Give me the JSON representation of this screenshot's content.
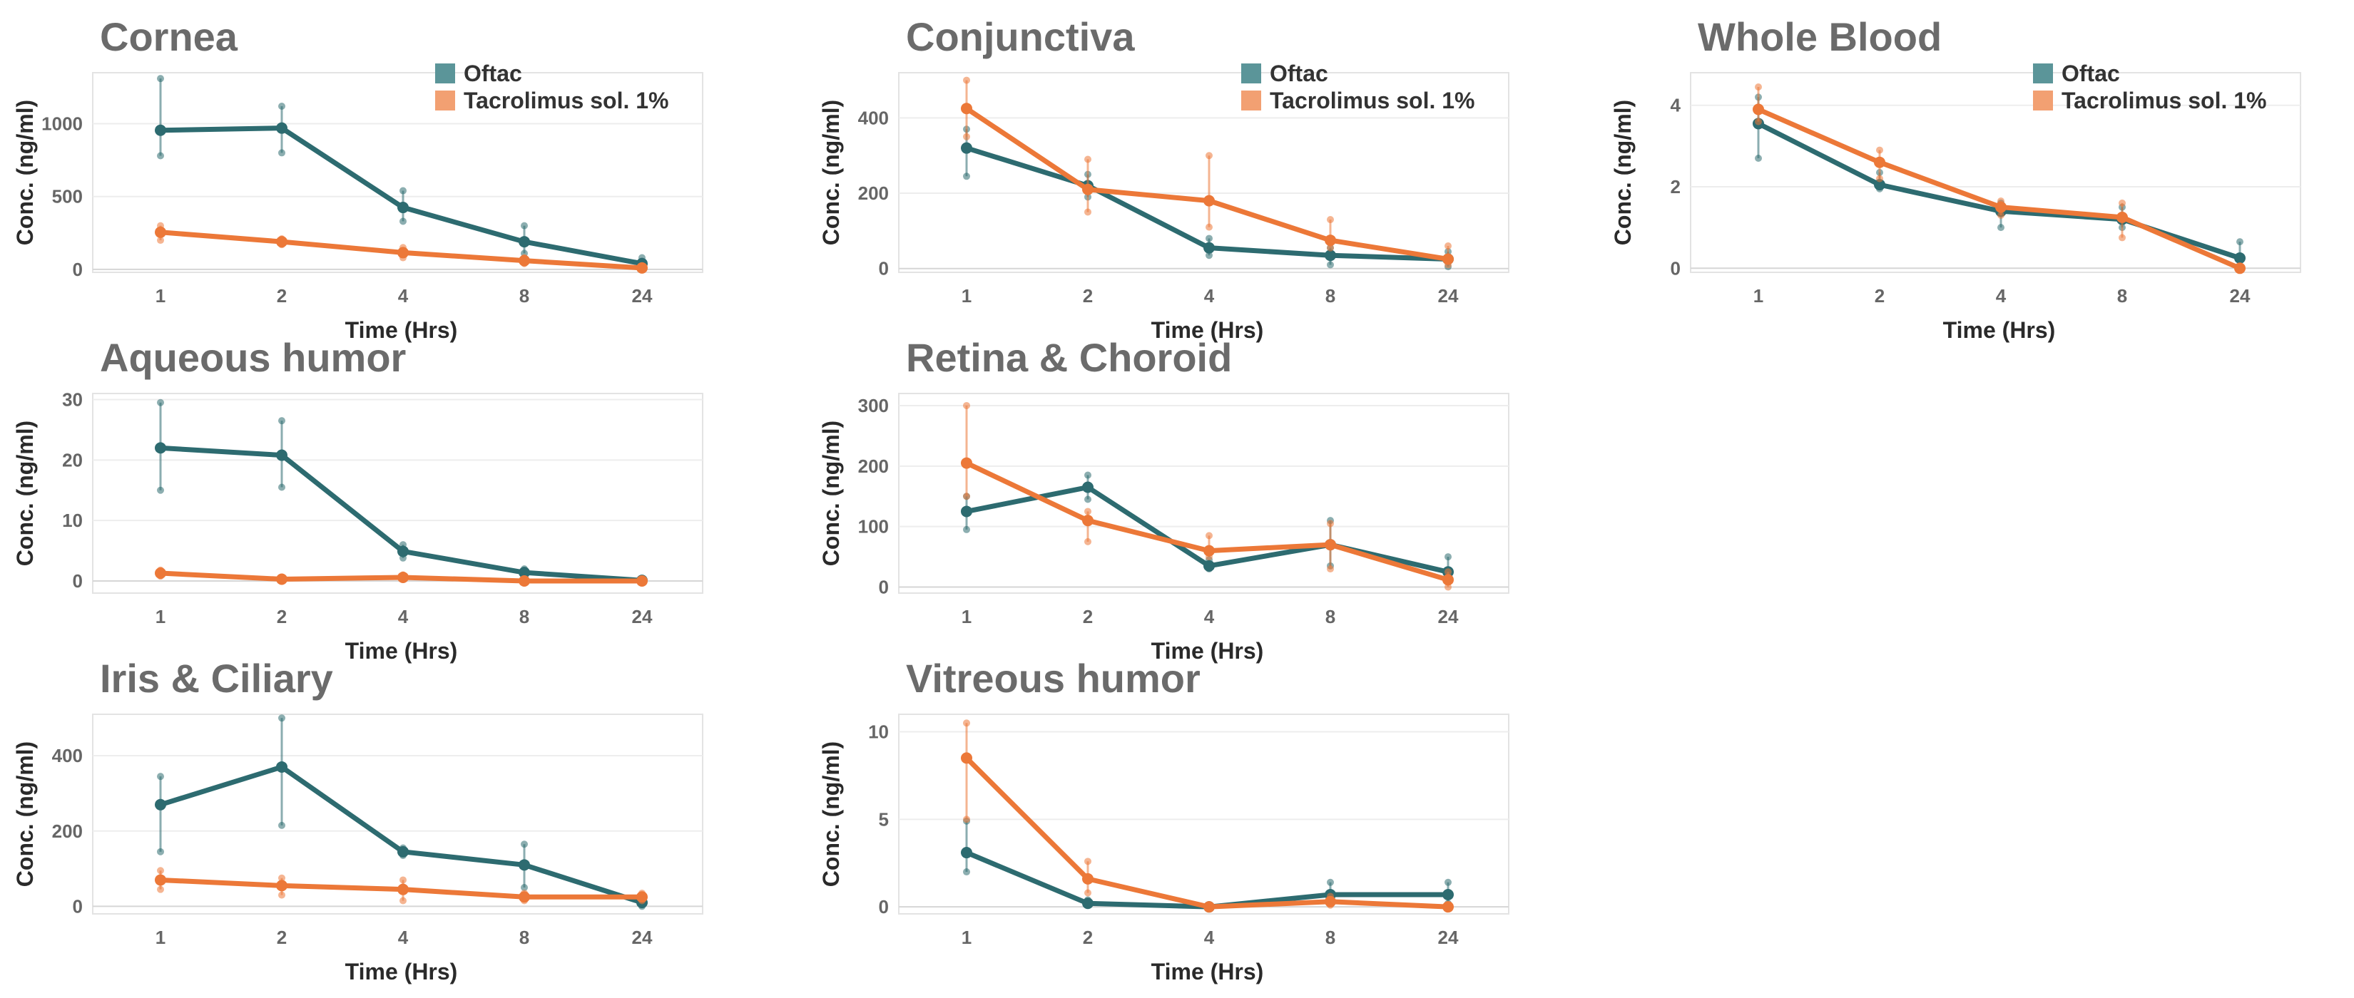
{
  "colors": {
    "oftac": "#2d6b70",
    "tacrolimus": "#ec7838"
  },
  "legend": [
    {
      "label": "Oftac",
      "color": "#5b9599"
    },
    {
      "label": "Tacrolimus sol. 1%",
      "color": "#f2a072"
    }
  ],
  "chart_data": [
    {
      "type": "line",
      "title": "Cornea",
      "xlabel": "Time (Hrs)",
      "ylabel": "Conc. (ng/ml)",
      "categories": [
        "1",
        "2",
        "4",
        "8",
        "24"
      ],
      "ylim": [
        -20,
        1350
      ],
      "yticks": [
        0,
        500,
        1000
      ],
      "legend": true,
      "series": [
        {
          "name": "Oftac",
          "values": [
            955,
            970,
            425,
            190,
            40
          ],
          "errors": [
            [
              780,
              1310
            ],
            [
              800,
              1120
            ],
            [
              330,
              540
            ],
            [
              110,
              300
            ],
            [
              0,
              80
            ]
          ]
        },
        {
          "name": "Tacrolimus sol. 1%",
          "values": [
            255,
            190,
            115,
            60,
            10
          ],
          "errors": [
            [
              200,
              300
            ],
            [
              170,
              210
            ],
            [
              80,
              150
            ],
            [
              40,
              80
            ],
            [
              0,
              25
            ]
          ]
        }
      ]
    },
    {
      "type": "line",
      "title": "Conjunctiva",
      "xlabel": "Time (Hrs)",
      "ylabel": "Conc. (ng/ml)",
      "categories": [
        "1",
        "2",
        "4",
        "8",
        "24"
      ],
      "ylim": [
        -10,
        520
      ],
      "yticks": [
        0,
        200,
        400
      ],
      "legend": true,
      "series": [
        {
          "name": "Oftac",
          "values": [
            320,
            220,
            55,
            35,
            25
          ],
          "errors": [
            [
              245,
              370
            ],
            [
              190,
              250
            ],
            [
              35,
              80
            ],
            [
              10,
              55
            ],
            [
              5,
              45
            ]
          ]
        },
        {
          "name": "Tacrolimus sol. 1%",
          "values": [
            425,
            210,
            180,
            75,
            25
          ],
          "errors": [
            [
              350,
              500
            ],
            [
              150,
              290
            ],
            [
              110,
              300
            ],
            [
              55,
              130
            ],
            [
              10,
              60
            ]
          ]
        }
      ]
    },
    {
      "type": "line",
      "title": "Whole Blood",
      "xlabel": "Time (Hrs)",
      "ylabel": "Conc. (ng/ml)",
      "categories": [
        "1",
        "2",
        "4",
        "8",
        "24"
      ],
      "ylim": [
        -0.1,
        4.8
      ],
      "yticks": [
        0,
        2,
        4
      ],
      "legend": true,
      "series": [
        {
          "name": "Oftac",
          "values": [
            3.55,
            2.05,
            1.4,
            1.2,
            0.25
          ],
          "errors": [
            [
              2.7,
              4.2
            ],
            [
              1.95,
              2.35
            ],
            [
              1.0,
              1.6
            ],
            [
              1.0,
              1.5
            ],
            [
              0.0,
              0.65
            ]
          ]
        },
        {
          "name": "Tacrolimus sol. 1%",
          "values": [
            3.9,
            2.6,
            1.5,
            1.25,
            0.0
          ],
          "errors": [
            [
              3.6,
              4.45
            ],
            [
              2.2,
              2.9
            ],
            [
              1.3,
              1.65
            ],
            [
              0.75,
              1.6
            ],
            [
              0.0,
              0.05
            ]
          ]
        }
      ]
    },
    {
      "type": "line",
      "title": "Aqueous humor",
      "xlabel": "Time (Hrs)",
      "ylabel": "Conc. (ng/ml)",
      "categories": [
        "1",
        "2",
        "4",
        "8",
        "24"
      ],
      "ylim": [
        -2,
        31
      ],
      "yticks": [
        0,
        10,
        20,
        30
      ],
      "legend": false,
      "series": [
        {
          "name": "Oftac",
          "values": [
            22,
            20.8,
            4.9,
            1.4,
            0.1
          ],
          "errors": [
            [
              15,
              29.5
            ],
            [
              15.5,
              26.5
            ],
            [
              3.8,
              6
            ],
            [
              0.7,
              2
            ],
            [
              0,
              0.3
            ]
          ]
        },
        {
          "name": "Tacrolimus sol. 1%",
          "values": [
            1.3,
            0.3,
            0.6,
            0.0,
            0.0
          ],
          "errors": [
            [
              0.8,
              1.8
            ],
            [
              0.1,
              0.6
            ],
            [
              0.3,
              1.0
            ],
            [
              0,
              0.2
            ],
            [
              0,
              0.1
            ]
          ]
        }
      ]
    },
    {
      "type": "line",
      "title": "Retina & Choroid",
      "xlabel": "Time (Hrs)",
      "ylabel": "Conc. (ng/ml)",
      "categories": [
        "1",
        "2",
        "4",
        "8",
        "24"
      ],
      "ylim": [
        -10,
        320
      ],
      "yticks": [
        0,
        100,
        200,
        300
      ],
      "legend": false,
      "series": [
        {
          "name": "Oftac",
          "values": [
            125,
            165,
            35,
            70,
            25
          ],
          "errors": [
            [
              95,
              150
            ],
            [
              145,
              185
            ],
            [
              30,
              45
            ],
            [
              35,
              110
            ],
            [
              10,
              50
            ]
          ]
        },
        {
          "name": "Tacrolimus sol. 1%",
          "values": [
            205,
            110,
            60,
            70,
            12
          ],
          "errors": [
            [
              150,
              300
            ],
            [
              75,
              125
            ],
            [
              50,
              85
            ],
            [
              30,
              105
            ],
            [
              0,
              25
            ]
          ]
        }
      ]
    },
    {
      "type": "line",
      "title": "Iris & Ciliary",
      "xlabel": "Time (Hrs)",
      "ylabel": "Conc. (ng/ml)",
      "categories": [
        "1",
        "2",
        "4",
        "8",
        "24"
      ],
      "ylim": [
        -20,
        510
      ],
      "yticks": [
        0,
        200,
        400
      ],
      "legend": false,
      "series": [
        {
          "name": "Oftac",
          "values": [
            270,
            370,
            145,
            110,
            10
          ],
          "errors": [
            [
              145,
              345
            ],
            [
              215,
              500
            ],
            [
              135,
              155
            ],
            [
              50,
              165
            ],
            [
              0,
              25
            ]
          ]
        },
        {
          "name": "Tacrolimus sol. 1%",
          "values": [
            70,
            55,
            45,
            25,
            25
          ],
          "errors": [
            [
              45,
              95
            ],
            [
              30,
              75
            ],
            [
              15,
              70
            ],
            [
              15,
              35
            ],
            [
              15,
              35
            ]
          ]
        }
      ]
    },
    {
      "type": "line",
      "title": "Vitreous humor",
      "xlabel": "Time (Hrs)",
      "ylabel": "Conc. (ng/ml)",
      "categories": [
        "1",
        "2",
        "4",
        "8",
        "24"
      ],
      "ylim": [
        -0.4,
        11
      ],
      "yticks": [
        0,
        5,
        10
      ],
      "legend": false,
      "series": [
        {
          "name": "Oftac",
          "values": [
            3.1,
            0.2,
            0.0,
            0.7,
            0.7
          ],
          "errors": [
            [
              2.0,
              4.9
            ],
            [
              0.1,
              0.4
            ],
            [
              0,
              0.1
            ],
            [
              0.2,
              1.4
            ],
            [
              0.2,
              1.4
            ]
          ]
        },
        {
          "name": "Tacrolimus sol. 1%",
          "values": [
            8.5,
            1.6,
            0.0,
            0.3,
            0.0
          ],
          "errors": [
            [
              5,
              10.5
            ],
            [
              0.8,
              2.6
            ],
            [
              0,
              0.1
            ],
            [
              0.1,
              0.6
            ],
            [
              0,
              0.1
            ]
          ]
        }
      ]
    }
  ]
}
